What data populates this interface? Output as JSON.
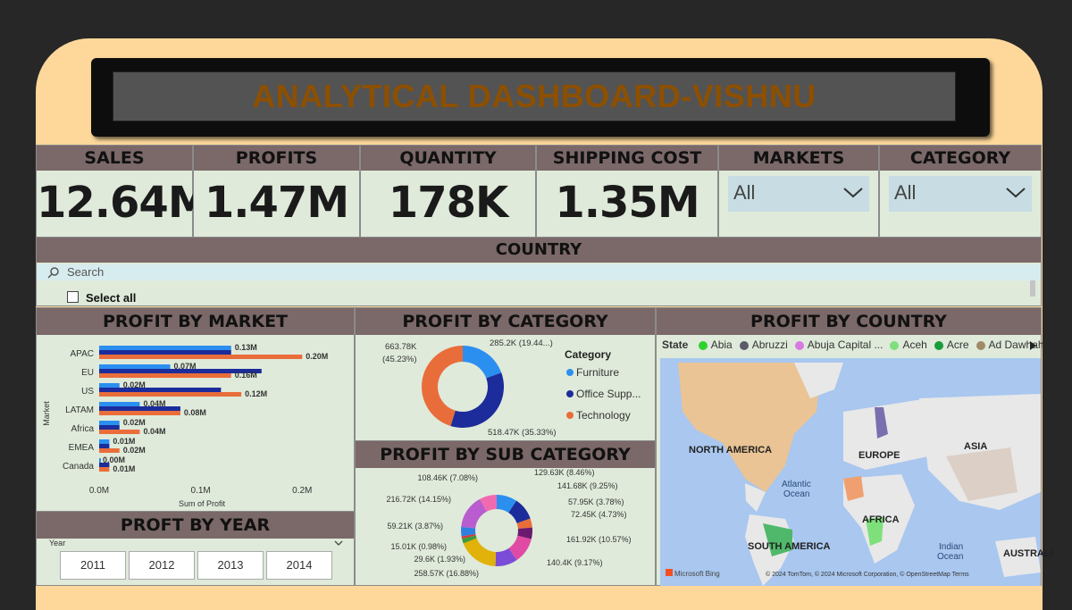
{
  "title": "ANALYTICAL DASHBOARD-VISHNU",
  "kpis": [
    {
      "label": "SALES",
      "value": "12.64M"
    },
    {
      "label": "PROFITS",
      "value": "1.47M"
    },
    {
      "label": "QUANTITY",
      "value": "178K"
    },
    {
      "label": "SHIPPING COST",
      "value": "1.35M"
    }
  ],
  "slicers": {
    "markets": {
      "label": "MARKETS",
      "value": "All"
    },
    "category": {
      "label": "CATEGORY",
      "value": "All"
    }
  },
  "country": {
    "label": "COUNTRY",
    "search_placeholder": "Search",
    "select_all": "Select all"
  },
  "colors": {
    "furniture": "#2b8ff0",
    "office": "#1c2c9b",
    "technology": "#e96d3a",
    "header": "#7b6868",
    "panel": "#dfeada"
  },
  "profit_by_market": {
    "title": "PROFIT BY MARKET",
    "ylabel": "Market",
    "xlabel": "Sum of Profit",
    "ticks": [
      "0.0M",
      "0.1M",
      "0.2M"
    ],
    "chart_data": {
      "type": "bar",
      "categories": [
        "APAC",
        "EU",
        "US",
        "LATAM",
        "Africa",
        "EMEA",
        "Canada"
      ],
      "xlim": [
        0,
        0.22
      ],
      "series": [
        {
          "values": [
            0.13,
            0.07,
            0.02,
            0.04,
            0.02,
            0.01,
            0.0
          ]
        },
        {
          "values": [
            0.13,
            0.16,
            0.12,
            0.08,
            0.02,
            0.01,
            0.01
          ]
        },
        {
          "values": [
            0.2,
            0.13,
            0.14,
            0.08,
            0.04,
            0.02,
            0.01
          ]
        }
      ],
      "labels": [
        [
          "0.13M",
          "0.20M"
        ],
        [
          "0.07M",
          "0.16M"
        ],
        [
          "0.02M",
          "0.12M"
        ],
        [
          "0.04M",
          "0.08M"
        ],
        [
          "0.02M",
          "0.04M"
        ],
        [
          "0.01M",
          "0.02M"
        ],
        [
          "0.00M",
          "0.01M"
        ]
      ]
    }
  },
  "profit_by_category": {
    "title": "PROFIT BY CATEGORY",
    "legend_title": "Category",
    "legend": [
      "Furniture",
      "Office Supp...",
      "Technology"
    ],
    "chart_data": {
      "type": "pie",
      "categories": [
        "Furniture",
        "Office Supplies",
        "Technology"
      ],
      "values": [
        285.2,
        518.47,
        663.78
      ],
      "labels": [
        "285.2K (19.44...)",
        "518.47K (35.33%)",
        "663.78K (45.23%)"
      ]
    }
  },
  "profit_by_sub_category": {
    "title": "PROFIT BY SUB CATEGORY",
    "chart_data": {
      "type": "pie",
      "values": [
        129.63,
        141.68,
        57.95,
        72.45,
        161.92,
        140.4,
        258.57,
        29.6,
        15.01,
        59.21,
        216.72,
        108.46
      ],
      "labels": [
        "129.63K (8.46%)",
        "141.68K (9.25%)",
        "57.95K (3.78%)",
        "72.45K (4.73%)",
        "161.92K (10.57%)",
        "140.4K (9.17%)",
        "258.57K (16.88%)",
        "29.6K (1.93%)",
        "15.01K (0.98%)",
        "59.21K (3.87%)",
        "216.72K (14.15%)",
        "108.46K (7.08%)"
      ],
      "colors": [
        "#2b8ff0",
        "#1c2c9b",
        "#e96d3a",
        "#6b1a6e",
        "#e04aa4",
        "#7a4cd8",
        "#e0b20a",
        "#3a9c3a",
        "#d03c3c",
        "#2f7fe0",
        "#b85cd0",
        "#f06ab0"
      ]
    }
  },
  "profit_by_year": {
    "title": "PROFT BY YEAR",
    "field": "Year",
    "years": [
      "2011",
      "2012",
      "2013",
      "2014"
    ]
  },
  "profit_by_country": {
    "title": "PROFIT BY COUNTRY",
    "legend_title": "State",
    "legend": [
      {
        "name": "Abia",
        "color": "#2fd12f"
      },
      {
        "name": "Abruzzi",
        "color": "#5a5a6a"
      },
      {
        "name": "Abuja Capital ...",
        "color": "#d67ae0"
      },
      {
        "name": "Aceh",
        "color": "#7ee07a"
      },
      {
        "name": "Acre",
        "color": "#1a9c3a"
      },
      {
        "name": "Ad Dawhah",
        "color": "#a08a6a"
      }
    ],
    "regions": [
      "NORTH AMERICA",
      "EUROPE",
      "ASIA",
      "AFRICA",
      "SOUTH AMERICA",
      "AUSTRALI"
    ],
    "oceans": [
      "Atlantic\nOcean",
      "Indian\nOcean"
    ],
    "logo": "Microsoft Bing",
    "copyright": "© 2024 TomTom, © 2024 Microsoft Corporation, © OpenStreetMap  Terms"
  }
}
